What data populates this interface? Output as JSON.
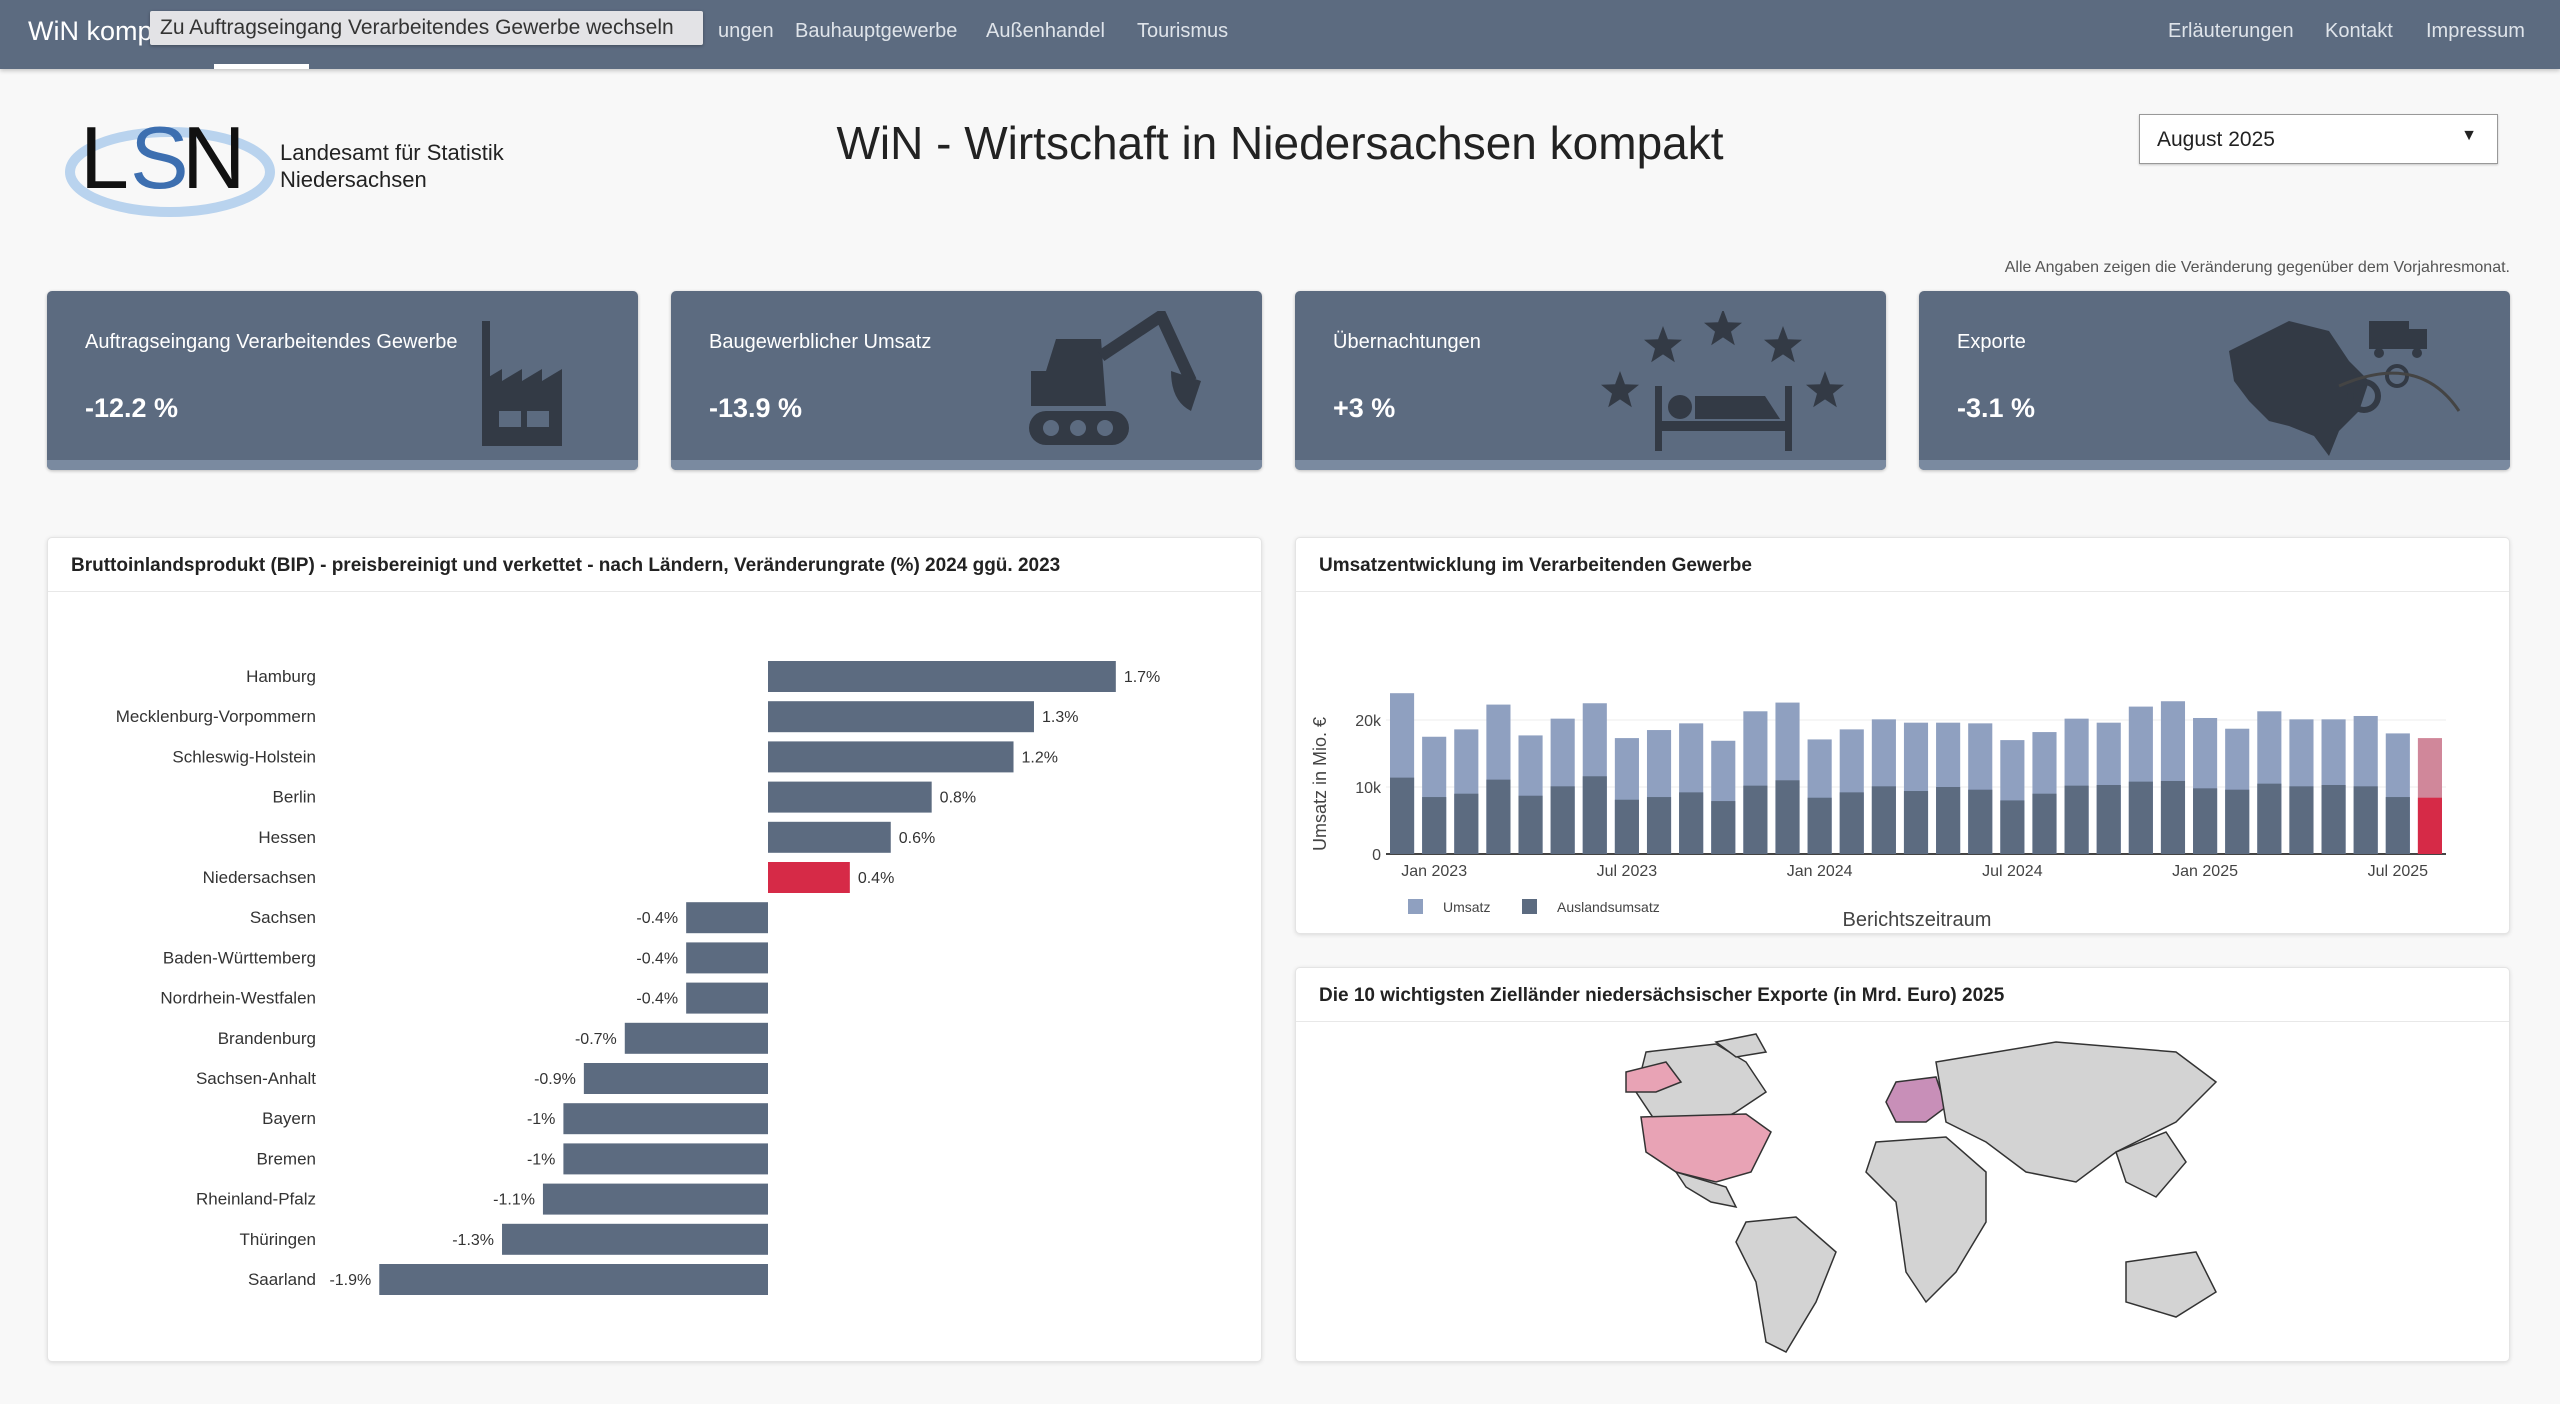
{
  "nav": {
    "brand": "WiN kompakt",
    "tooltip": "Zu Auftragseingang Verarbeitendes Gewerbe wechseln",
    "partial_item": "ungen",
    "items": [
      "Bauhauptgewerbe",
      "Außenhandel",
      "Tourismus"
    ],
    "right_items": [
      "Erläuterungen",
      "Kontakt",
      "Impressum"
    ]
  },
  "logo": {
    "letters": "LSN",
    "line1": "Landesamt für Statistik",
    "line2": "Niedersachsen"
  },
  "header": {
    "title": "WiN - Wirtschaft in Niedersachsen kompakt",
    "month_select": "August 2025",
    "note": "Alle Angaben zeigen die Veränderung gegenüber dem Vorjahresmonat."
  },
  "kpis": [
    {
      "label": "Auftragseingang Verarbeitendes Gewerbe",
      "value": "-12.2 %",
      "icon": "factory-icon"
    },
    {
      "label": "Baugewerblicher Umsatz",
      "value": "-13.9 %",
      "icon": "excavator-icon"
    },
    {
      "label": "Übernachtungen",
      "value": "+3 %",
      "icon": "hotel-bed-stars-icon"
    },
    {
      "label": "Exporte",
      "value": "-3.1 %",
      "icon": "export-map-truck-icon"
    }
  ],
  "colors": {
    "nav": "#5c6b80",
    "bar": "#5c6b80",
    "highlight": "#d62a47",
    "umsatz": "#8fa0c0",
    "umsatz_highlight": "#d0879a",
    "map_land": "#d3d3d3",
    "map_target": "#e8a3b5"
  },
  "chart_data": [
    {
      "type": "bar",
      "orientation": "horizontal",
      "title": "Bruttoinlandsprodukt (BIP) - preisbereinigt und verkettet - nach Ländern, Veränderungrate (%) 2024 ggü. 2023",
      "categories": [
        "Hamburg",
        "Mecklenburg-Vorpommern",
        "Schleswig-Holstein",
        "Berlin",
        "Hessen",
        "Niedersachsen",
        "Sachsen",
        "Baden-Württemberg",
        "Nordrhein-Westfalen",
        "Brandenburg",
        "Sachsen-Anhalt",
        "Bayern",
        "Bremen",
        "Rheinland-Pfalz",
        "Thüringen",
        "Saarland"
      ],
      "values": [
        1.7,
        1.3,
        1.2,
        0.8,
        0.6,
        0.4,
        -0.4,
        -0.4,
        -0.4,
        -0.7,
        -0.9,
        -1,
        -1,
        -1.1,
        -1.3,
        -1.9
      ],
      "labels": [
        "1.7%",
        "1.3%",
        "1.2%",
        "0.8%",
        "0.6%",
        "0.4%",
        "-0.4%",
        "-0.4%",
        "-0.4%",
        "-0.7%",
        "-0.9%",
        "-1%",
        "-1%",
        "-1.1%",
        "-1.3%",
        "-1.9%"
      ],
      "highlight": "Niedersachsen",
      "grid": false
    },
    {
      "type": "bar",
      "mode": "overlay",
      "title": "Umsatzentwicklung im Verarbeitenden Gewerbe",
      "xlabel": "Berichtszeitraum",
      "ylabel": "Umsatz in Mio. €",
      "x_start": "2022-12",
      "x_end": "2025-08",
      "xticks": [
        "Jan 2023",
        "Jul 2023",
        "Jan 2024",
        "Jul 2024",
        "Jan 2025",
        "Jul 2025"
      ],
      "yticks": [
        "0",
        "10k",
        "20k"
      ],
      "ylim": [
        0,
        25000
      ],
      "legend": "bottom-left",
      "grid": true,
      "series": [
        {
          "name": "Umsatz",
          "values": [
            24000,
            17500,
            18600,
            22300,
            17700,
            20200,
            22500,
            17300,
            18500,
            19500,
            16900,
            21300,
            22600,
            17100,
            18600,
            20100,
            19600,
            19600,
            19500,
            17000,
            18200,
            20200,
            19600,
            22000,
            22800,
            20300,
            18700,
            21300,
            20100,
            20100,
            20600,
            18000,
            17300
          ]
        },
        {
          "name": "Auslandsumsatz",
          "values": [
            11400,
            8500,
            9000,
            11100,
            8700,
            10100,
            11600,
            8100,
            8500,
            9200,
            7900,
            10200,
            11000,
            8400,
            9200,
            10100,
            9400,
            10000,
            9600,
            8000,
            9000,
            10200,
            10300,
            10800,
            10900,
            9800,
            9600,
            10500,
            10100,
            10300,
            10100,
            8500,
            8400
          ]
        }
      ]
    },
    {
      "type": "map",
      "title": "Die 10 wichtigsten Zielländer niedersächsischer Exporte (in Mrd. Euro) 2025"
    }
  ]
}
